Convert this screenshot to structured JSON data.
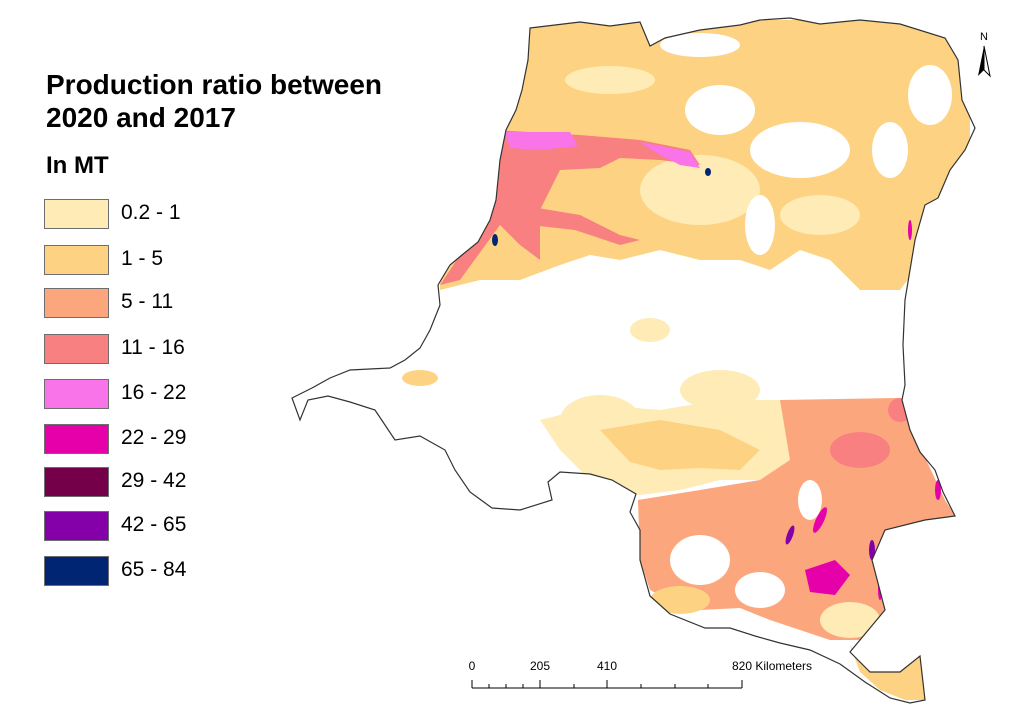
{
  "map": {
    "title": "Production ratio between 2020 and 2017",
    "subtitle": "In MT",
    "legend": [
      {
        "label": "0.2 - 1",
        "color": "#ffebb5"
      },
      {
        "label": "1 - 5",
        "color": "#fdd383"
      },
      {
        "label": "5 - 11",
        "color": "#fba67c"
      },
      {
        "label": "11 - 16",
        "color": "#f98080"
      },
      {
        "label": "16 - 22",
        "color": "#f874e8"
      },
      {
        "label": "22 - 29",
        "color": "#e600a9"
      },
      {
        "label": "29 - 42",
        "color": "#730048"
      },
      {
        "label": "42 - 65",
        "color": "#8400a8"
      },
      {
        "label": "65 - 84",
        "color": "#002673"
      }
    ],
    "scale_bar": {
      "ticks": [
        "0",
        "205",
        "410",
        "820 Kilometers"
      ]
    },
    "north_arrow": {
      "label": "N"
    }
  }
}
